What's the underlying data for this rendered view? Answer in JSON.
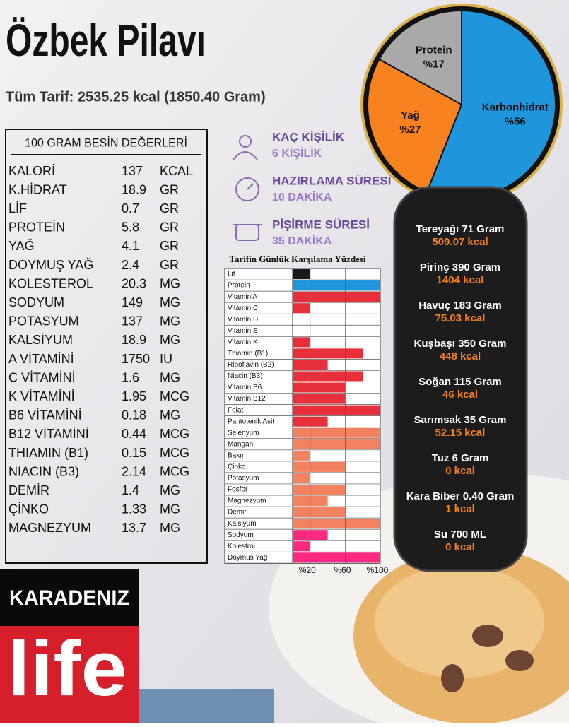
{
  "header": {
    "title": "Özbek Pilavı",
    "subtitle": "Tüm Tarif: 2535.25 kcal (1850.40 Gram)"
  },
  "nutrition": {
    "title": "100 GRAM BESİN DEĞERLERİ",
    "rows": [
      [
        "KALORİ",
        "137",
        "KCAL"
      ],
      [
        "K.HİDRAT",
        "18.9",
        "GR"
      ],
      [
        "LİF",
        "0.7",
        "GR"
      ],
      [
        "PROTEİN",
        "5.8",
        "GR"
      ],
      [
        "YAĞ",
        "4.1",
        "GR"
      ],
      [
        "DOYMUŞ YAĞ",
        "2.4",
        "GR"
      ],
      [
        "KOLESTEROL",
        "20.3",
        "MG"
      ],
      [
        "SODYUM",
        "149",
        "MG"
      ],
      [
        "POTASYUM",
        "137",
        "MG"
      ],
      [
        "KALSİYUM",
        "18.9",
        "MG"
      ],
      [
        "A VİTAMİNİ",
        "1750",
        "IU"
      ],
      [
        "C VİTAMİNİ",
        "1.6",
        "MG"
      ],
      [
        "K VİTAMİNİ",
        "1.95",
        "MCG"
      ],
      [
        "B6 VİTAMİNİ",
        "0.18",
        "MG"
      ],
      [
        "B12 VİTAMİNİ",
        "0.44",
        "MCG"
      ],
      [
        "THIAMIN (B1)",
        "0.15",
        "MCG"
      ],
      [
        "NIACIN (B3)",
        "2.14",
        "MCG"
      ],
      [
        "DEMİR",
        "1.4",
        "MG"
      ],
      [
        "ÇİNKO",
        "1.33",
        "MG"
      ],
      [
        "MAGNEZYUM",
        "13.7",
        "MG"
      ]
    ]
  },
  "info": [
    {
      "label": "KAÇ KİŞİLİK",
      "value": "6 KİŞİLİK"
    },
    {
      "label": "HAZIRLAMA SÜRESİ",
      "value": "10 DAKİKA"
    },
    {
      "label": "PİŞİRME SÜRESİ",
      "value": "35 DAKİKA"
    }
  ],
  "chart_data": [
    {
      "type": "pie",
      "categories": [
        "Karbonhidrat",
        "Yağ",
        "Protein"
      ],
      "values": [
        56,
        27,
        17
      ],
      "value_labels": [
        "%56",
        "%27",
        "%17"
      ],
      "colors": [
        "#1f95dc",
        "#f7821f",
        "#a9a9a9"
      ]
    },
    {
      "type": "bar",
      "title": "Tarifin Günlük Karşılama Yüzdesi",
      "categories": [
        "Lif",
        "Protein",
        "Vitamin A",
        "Vitamin C",
        "Vitamin D",
        "Vitamin E",
        "Vitamin K",
        "Thiamin (B1)",
        "Riboflavin (B2)",
        "Niacin (B3)",
        "Vitamin B6",
        "Vitamin B12",
        "Folat",
        "Pantotenik Asit",
        "Selenyum",
        "Mangan",
        "Bakır",
        "Çinko",
        "Potasyum",
        "Fosfor",
        "Magnezyum",
        "Demir",
        "Kalsiyum",
        "Sodyum",
        "Kolestrol",
        "Doymus Yağ"
      ],
      "values": [
        20,
        100,
        100,
        20,
        0,
        0,
        20,
        80,
        40,
        80,
        60,
        60,
        100,
        40,
        100,
        100,
        20,
        60,
        20,
        60,
        40,
        60,
        100,
        40,
        20,
        100
      ],
      "colors": [
        "#1a1a1a",
        "#1f95dc",
        "#e8303a",
        "#e8303a",
        "#e8303a",
        "#e8303a",
        "#e8303a",
        "#e8303a",
        "#e8303a",
        "#e8303a",
        "#e8303a",
        "#e8303a",
        "#e8303a",
        "#e8303a",
        "#f2825f",
        "#f2825f",
        "#f2825f",
        "#f2825f",
        "#f2825f",
        "#f2825f",
        "#f2825f",
        "#f2825f",
        "#f2825f",
        "#ff2a7f",
        "#ff2a7f",
        "#ff2a7f"
      ],
      "xlim": [
        0,
        100
      ],
      "xticks": [
        {
          "value": 20,
          "label": "%20"
        },
        {
          "value": 60,
          "label": "%60"
        },
        {
          "value": 100,
          "label": "%100"
        }
      ]
    }
  ],
  "ingredients": [
    {
      "name": "Tereyağı 71 Gram",
      "kcal": "509.07 kcal"
    },
    {
      "name": "Pirinç 390 Gram",
      "kcal": "1404 kcal"
    },
    {
      "name": "Havuç 183 Gram",
      "kcal": "75.03 kcal"
    },
    {
      "name": "Kuşbaşı 350 Gram",
      "kcal": "448 kcal"
    },
    {
      "name": "Soğan 115 Gram",
      "kcal": "46 kcal"
    },
    {
      "name": "Sarımsak 35 Gram",
      "kcal": "52.15 kcal"
    },
    {
      "name": "Tuz 6 Gram",
      "kcal": "0 kcal"
    },
    {
      "name": "Kara Biber 0.40 Gram",
      "kcal": "1 kcal"
    },
    {
      "name": "Su 700 ML",
      "kcal": "0 kcal"
    }
  ],
  "brand": {
    "top": "KARADENIZ",
    "logo": "life"
  }
}
